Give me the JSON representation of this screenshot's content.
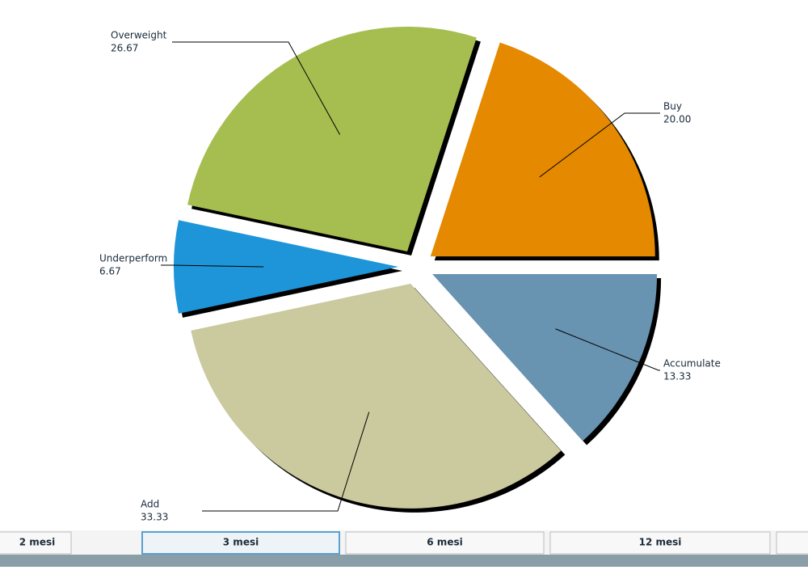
{
  "chart_data": {
    "type": "pie",
    "categories": [
      "Buy",
      "Overweight",
      "Underperform",
      "Add",
      "Accumulate"
    ],
    "values": [
      20,
      26.67,
      6.67,
      33.33,
      13.33
    ],
    "value_labels": [
      "20.00",
      "26.67",
      "6.67",
      "33.33",
      "13.33"
    ],
    "colors": [
      "#e48900",
      "#a6bd50",
      "#1e95d8",
      "#cbc99e",
      "#6893b1"
    ],
    "start_angle": 0,
    "direction": "counterclockwise",
    "exploded": true,
    "shadow": true
  },
  "tabs": {
    "items": [
      "2 mesi",
      "3 mesi",
      "6 mesi",
      "12 mesi"
    ],
    "selected": 1
  }
}
